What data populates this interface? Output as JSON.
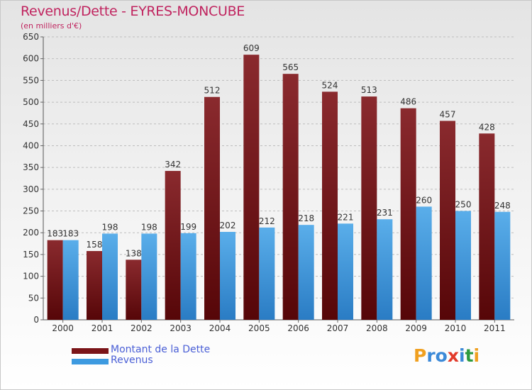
{
  "chart_data": {
    "type": "bar",
    "title": "Revenus/Dette - EYRES-MONCUBE",
    "subtitle": "(en milliers d'€)",
    "categories": [
      "2000",
      "2001",
      "2002",
      "2003",
      "2004",
      "2005",
      "2006",
      "2007",
      "2008",
      "2009",
      "2010",
      "2011"
    ],
    "series": [
      {
        "name": "Montant de la Dette",
        "color": "#7a1418",
        "values": [
          183,
          158,
          138,
          342,
          512,
          609,
          565,
          524,
          513,
          486,
          457,
          428
        ]
      },
      {
        "name": "Revenus",
        "color": "#3d9ae0",
        "values": [
          183,
          198,
          198,
          199,
          202,
          212,
          218,
          221,
          231,
          260,
          250,
          248
        ]
      }
    ],
    "ylim": [
      0,
      650
    ],
    "yticks": [
      0,
      50,
      100,
      150,
      200,
      250,
      300,
      350,
      400,
      450,
      500,
      550,
      600,
      650
    ],
    "grid": true,
    "legend_position": "bottom-left"
  },
  "logo": {
    "letters": [
      "P",
      "r",
      "o",
      "x",
      "i",
      "t",
      "i"
    ],
    "colors": [
      "#f0a020",
      "#3c8ad8",
      "#3c8ad8",
      "#e23a2a",
      "#3c8ad8",
      "#2e9a3e",
      "#f0a020"
    ]
  }
}
